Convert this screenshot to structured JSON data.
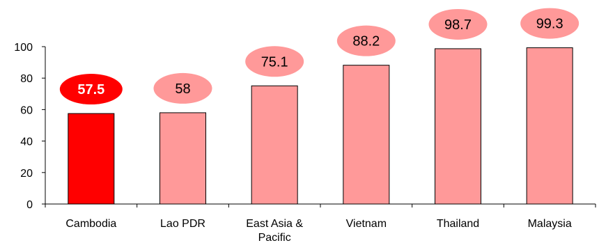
{
  "chart_data": {
    "type": "bar",
    "categories": [
      "Cambodia",
      "Lao PDR",
      "East Asia & Pacific",
      "Vietnam",
      "Thailand",
      "Malaysia"
    ],
    "category_lines": [
      [
        "Cambodia"
      ],
      [
        "Lao PDR"
      ],
      [
        "East Asia &",
        "Pacific"
      ],
      [
        "Vietnam"
      ],
      [
        "Thailand"
      ],
      [
        "Malaysia"
      ]
    ],
    "values": [
      57.5,
      58,
      75.1,
      88.2,
      98.7,
      99.3
    ],
    "data_labels": [
      "57.5",
      "58",
      "75.1",
      "88.2",
      "98.7",
      "99.3"
    ],
    "highlight_index": 0,
    "ylim": [
      0,
      100
    ],
    "yticks": [
      0,
      20,
      40,
      60,
      80,
      100
    ],
    "grid": false,
    "title": "",
    "xlabel": "",
    "ylabel": "",
    "colors": {
      "bar": "#ff9999",
      "bar_highlight": "#ff0000",
      "label_bubble": "#ff9999",
      "label_bubble_highlight": "#ff0000",
      "bar_stroke": "#000000"
    }
  }
}
